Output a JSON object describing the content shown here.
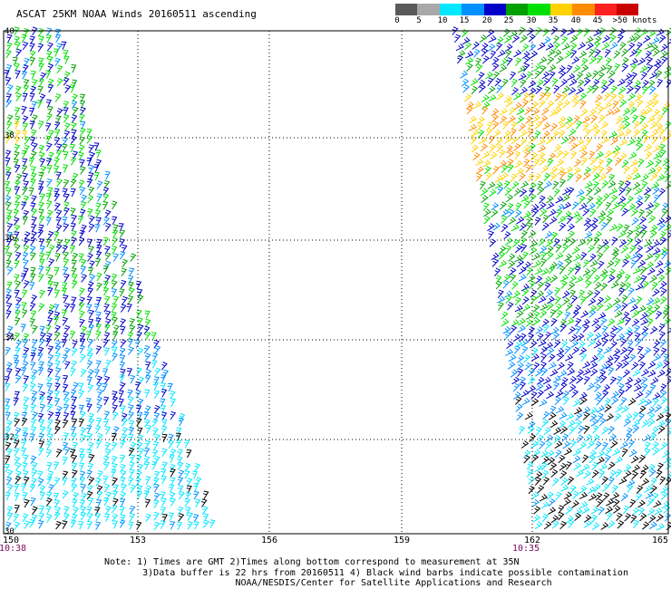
{
  "title": "ASCAT 25KM NOAA Winds 20160511 ascending",
  "legend": {
    "ticks": [
      "0",
      "5",
      "10",
      "15",
      "20",
      "25",
      "30",
      "35",
      "40",
      "45",
      ">50 knots"
    ],
    "colors": [
      "#5a5a5a",
      "#a8a8a8",
      "#00e8ff",
      "#0090ff",
      "#0000c8",
      "#00a000",
      "#00e000",
      "#ffd200",
      "#ff8c00",
      "#ff2020",
      "#c80000",
      "#a0523c",
      "#ff00ff",
      "#8c00c8"
    ]
  },
  "map": {
    "lon_range": [
      150,
      165
    ],
    "lat_range": [
      30,
      40
    ],
    "lon_labels": [
      "150",
      "153",
      "156",
      "159",
      "162",
      "165"
    ],
    "lat_labels": [
      "40",
      "38",
      "36",
      "34",
      "32",
      "30"
    ],
    "time_labels": [
      {
        "text": "10:38",
        "lon": 150
      },
      {
        "text": "10:35",
        "lon": 162
      }
    ],
    "speed_bands_knots": [
      0,
      5,
      10,
      15,
      20,
      25,
      30,
      35,
      40,
      45,
      50
    ]
  },
  "notes": {
    "line1": "Note: 1) Times are GMT 2)Times along bottom correspond to measurement at 35N",
    "line2": "       3)Data buffer is 22 hrs from 20160511 4) Black wind barbs indicate possible contamination",
    "line3": "                        NOAA/NESDIS/Center for Satellite Applications and Research"
  }
}
